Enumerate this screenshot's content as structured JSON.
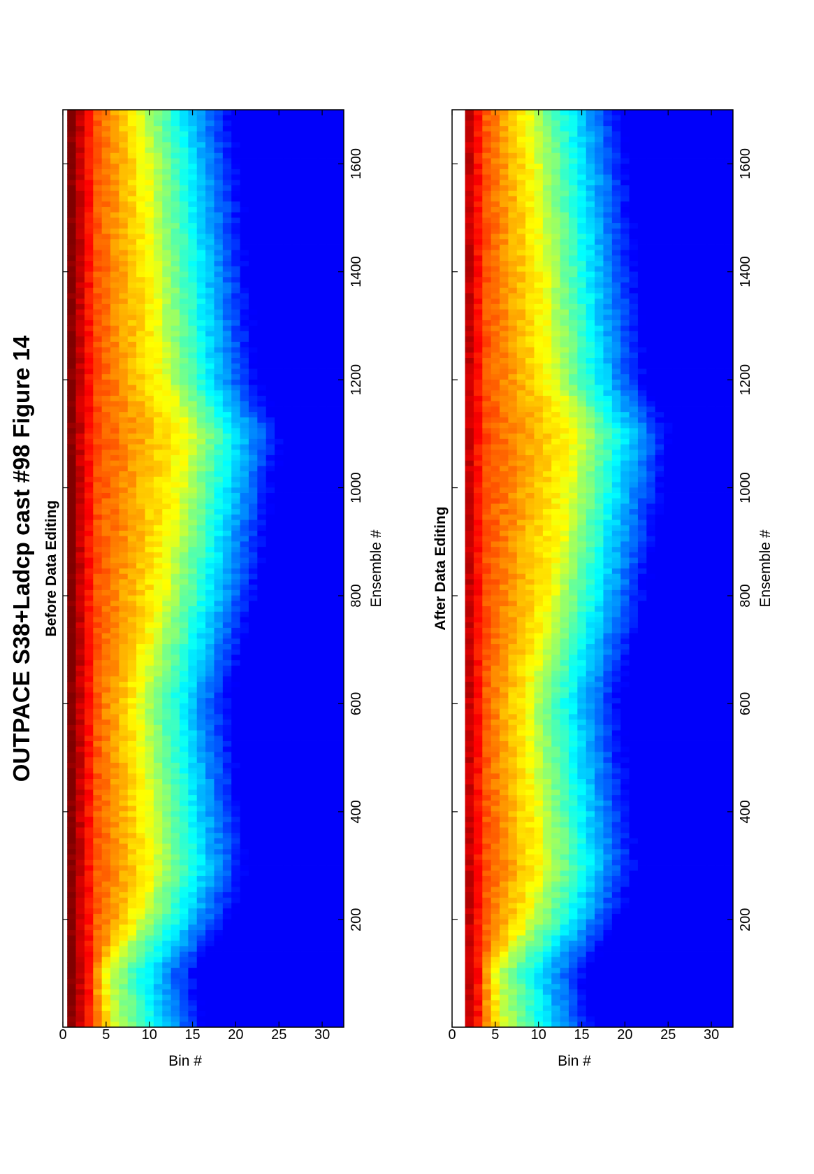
{
  "title": "OUTPACE S38+Ladcp cast #98  Figure 14",
  "chart_data": [
    {
      "type": "heatmap",
      "title": "Before Data Editing",
      "xlabel": "Ensemble #",
      "ylabel": "Bin #",
      "xlim": [
        1,
        1700
      ],
      "ylim": [
        0,
        32.5
      ],
      "x_ticks": [
        "200",
        "400",
        "600",
        "800",
        "1000",
        "1200",
        "1400",
        "1600"
      ],
      "y_ticks": [
        "0",
        "5",
        "10",
        "15",
        "20",
        "25",
        "30"
      ],
      "x_tick_values": [
        200,
        400,
        600,
        800,
        1000,
        1200,
        1400,
        1600
      ],
      "y_tick_values": [
        0,
        5,
        10,
        15,
        20,
        25,
        30
      ],
      "bins": [
        1,
        32
      ],
      "ensembles": 1700,
      "colormap": "jet",
      "first_bin": 1,
      "near_field_high_bins": [
        1,
        4
      ],
      "weak_signal_bins": [
        22,
        32
      ],
      "notes_on_pattern": [
        {
          "ensemble": 1,
          "high_until_bin": 6
        },
        {
          "ensemble": 100,
          "high_until_bin": 5
        },
        {
          "ensemble": 200,
          "high_until_bin": 9
        },
        {
          "ensemble": 300,
          "high_until_bin": 11
        },
        {
          "ensemble": 450,
          "high_until_bin": 10
        },
        {
          "ensemble": 600,
          "high_until_bin": 9
        },
        {
          "ensemble": 800,
          "high_until_bin": 12
        },
        {
          "ensemble": 1000,
          "high_until_bin": 14
        },
        {
          "ensemble": 1100,
          "high_until_bin": 15
        },
        {
          "ensemble": 1200,
          "high_until_bin": 12
        },
        {
          "ensemble": 1400,
          "high_until_bin": 11
        },
        {
          "ensemble": 1600,
          "high_until_bin": 10
        },
        {
          "ensemble": 1700,
          "high_until_bin": 9
        }
      ]
    },
    {
      "type": "heatmap",
      "title": "After Data Editing",
      "xlabel": "Ensemble #",
      "ylabel": "Bin #",
      "xlim": [
        1,
        1700
      ],
      "ylim": [
        0,
        32.5
      ],
      "x_ticks": [
        "200",
        "400",
        "600",
        "800",
        "1000",
        "1200",
        "1400",
        "1600"
      ],
      "y_ticks": [
        "0",
        "5",
        "10",
        "15",
        "20",
        "25",
        "30"
      ],
      "x_tick_values": [
        200,
        400,
        600,
        800,
        1000,
        1200,
        1400,
        1600
      ],
      "y_tick_values": [
        0,
        5,
        10,
        15,
        20,
        25,
        30
      ],
      "bins": [
        2,
        32
      ],
      "ensembles": 1700,
      "colormap": "jet",
      "first_bin": 2,
      "near_field_high_bins": [
        2,
        4
      ],
      "weak_signal_bins": [
        22,
        32
      ]
    }
  ]
}
